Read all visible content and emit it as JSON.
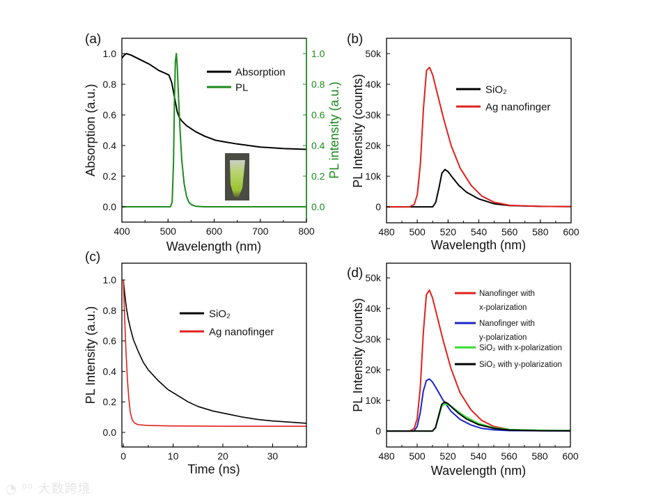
{
  "watermark": "大数跨境",
  "chart_data": [
    {
      "panel": "(a)",
      "type": "line",
      "xlabel": "Wavelength (nm)",
      "ylabel": "Absorption (a.u.)",
      "ylabel_right": "PL intensity (a.u.)",
      "xlim": [
        400,
        800
      ],
      "ylim": [
        -0.1,
        1.1
      ],
      "xticks": [
        "400",
        "500",
        "600",
        "700",
        "800"
      ],
      "yticks": [
        "0.0",
        "0.2",
        "0.4",
        "0.6",
        "0.8",
        "1.0"
      ],
      "yticks_right": [
        "0.0",
        "0.2",
        "0.4",
        "0.6",
        "0.8",
        "1.0"
      ],
      "inset": "vial photo",
      "series": [
        {
          "name": "Absorption",
          "color": "#000000",
          "x": [
            400,
            405,
            410,
            420,
            440,
            460,
            480,
            495,
            502,
            508,
            515,
            520,
            525,
            530,
            540,
            560,
            580,
            598,
            602,
            620,
            650,
            700,
            750,
            800
          ],
          "y": [
            0.97,
            0.99,
            1.0,
            0.99,
            0.96,
            0.93,
            0.89,
            0.87,
            0.86,
            0.81,
            0.7,
            0.62,
            0.58,
            0.56,
            0.53,
            0.49,
            0.46,
            0.44,
            0.435,
            0.425,
            0.41,
            0.39,
            0.38,
            0.375
          ]
        },
        {
          "name": "PL",
          "color": "#1a8a1a",
          "x": [
            400,
            505,
            509,
            512,
            514,
            516,
            518,
            520,
            523,
            526,
            530,
            535,
            540,
            545,
            550,
            560,
            580,
            800
          ],
          "y": [
            0,
            0,
            0.03,
            0.3,
            0.7,
            0.95,
            1.0,
            0.92,
            0.7,
            0.5,
            0.3,
            0.15,
            0.07,
            0.03,
            0.015,
            0.003,
            0,
            0
          ]
        }
      ]
    },
    {
      "panel": "(b)",
      "type": "line",
      "xlabel": "Wavelength (nm)",
      "ylabel": "PL Intensity (counts)",
      "xlim": [
        480,
        600
      ],
      "ylim": [
        -5200,
        55000
      ],
      "xticks": [
        "480",
        "500",
        "520",
        "540",
        "560",
        "580",
        "600"
      ],
      "yticks": [
        "0",
        "10k",
        "20k",
        "30k",
        "40k",
        "50k"
      ],
      "series": [
        {
          "name": "SiO₂",
          "color": "#000000",
          "x": [
            480,
            510,
            512,
            514,
            516,
            518,
            520,
            523,
            527,
            532,
            540,
            550,
            560,
            580,
            600
          ],
          "y": [
            0,
            0,
            1500,
            6000,
            11000,
            12200,
            11500,
            9500,
            7000,
            4800,
            2600,
            1000,
            400,
            150,
            100
          ]
        },
        {
          "name": "Ag nanofinger",
          "color": "#e0201b",
          "x": [
            480,
            495,
            498,
            500,
            502,
            504,
            506,
            508,
            510,
            513,
            517,
            522,
            528,
            535,
            542,
            550,
            560,
            580,
            600
          ],
          "y": [
            0,
            0,
            800,
            4000,
            14000,
            32000,
            44500,
            45500,
            43000,
            37000,
            29000,
            20000,
            12500,
            7000,
            3500,
            1500,
            500,
            150,
            100
          ]
        }
      ]
    },
    {
      "panel": "(c)",
      "type": "line",
      "xlabel": "Time (ns)",
      "ylabel": "PL Intensity (a.u.)",
      "xlim": [
        -0.3,
        36.8
      ],
      "ylim": [
        -0.096,
        1.11
      ],
      "xticks": [
        "0",
        "10",
        "20",
        "30"
      ],
      "yticks": [
        "0.0",
        "0.2",
        "0.4",
        "0.6",
        "0.8",
        "1.0"
      ],
      "series": [
        {
          "name": "SiO₂",
          "color": "#000000",
          "x": [
            0,
            0.3,
            0.6,
            1,
            1.5,
            2,
            3,
            4,
            5,
            7,
            9,
            11,
            13,
            15,
            18,
            21,
            24,
            27,
            30,
            33,
            36.8
          ],
          "y": [
            1.0,
            0.9,
            0.82,
            0.74,
            0.67,
            0.61,
            0.53,
            0.46,
            0.41,
            0.34,
            0.28,
            0.24,
            0.2,
            0.17,
            0.14,
            0.12,
            0.1,
            0.085,
            0.075,
            0.068,
            0.06
          ]
        },
        {
          "name": "Ag nanofinger",
          "color": "#e0201b",
          "x": [
            0,
            0.2,
            0.5,
            0.8,
            1.1,
            1.4,
            1.8,
            2.3,
            3,
            5,
            10,
            20,
            30,
            36.8
          ],
          "y": [
            1.0,
            0.8,
            0.55,
            0.35,
            0.22,
            0.13,
            0.08,
            0.06,
            0.05,
            0.045,
            0.042,
            0.04,
            0.04,
            0.04
          ]
        }
      ]
    },
    {
      "panel": "(d)",
      "type": "line",
      "xlabel": "Wavelength (nm)",
      "ylabel": "PL Intensity (counts)",
      "xlim": [
        480,
        600
      ],
      "ylim": [
        -5200,
        54800
      ],
      "xticks": [
        "480",
        "500",
        "520",
        "540",
        "560",
        "580",
        "600"
      ],
      "yticks": [
        "0",
        "10k",
        "20k",
        "30k",
        "40k",
        "50k"
      ],
      "series": [
        {
          "name": "Nanofinger with",
          "name2": "x-polarization",
          "color": "#e0201b",
          "x": [
            480,
            495,
            498,
            500,
            502,
            504,
            506,
            508,
            510,
            513,
            517,
            522,
            528,
            535,
            542,
            550,
            560,
            580,
            600
          ],
          "y": [
            0,
            0,
            800,
            4000,
            14000,
            32000,
            44500,
            46000,
            43500,
            37500,
            29500,
            20500,
            12500,
            7000,
            3500,
            1500,
            500,
            150,
            100
          ]
        },
        {
          "name": "Nanofinger with",
          "name2": "y-polarization",
          "color": "#1b24c8",
          "x": [
            480,
            498,
            500,
            502,
            504,
            506,
            508,
            510,
            513,
            517,
            522,
            528,
            535,
            542,
            550,
            560,
            600
          ],
          "y": [
            0,
            0,
            1500,
            6000,
            13000,
            16500,
            17000,
            16000,
            13500,
            10000,
            6500,
            3800,
            2000,
            900,
            400,
            150,
            50
          ]
        },
        {
          "name": "SiO₂ with x-polarization",
          "color": "#33dd33",
          "x": [
            480,
            510,
            512,
            514,
            516,
            518,
            520,
            523,
            527,
            532,
            540,
            550,
            560,
            580,
            600
          ],
          "y": [
            0,
            0,
            1000,
            4500,
            8000,
            8800,
            8600,
            7800,
            6300,
            4600,
            2500,
            1100,
            500,
            250,
            200
          ]
        },
        {
          "name": "SiO₂ with y-polarization",
          "color": "#000000",
          "x": [
            480,
            510,
            512,
            514,
            516,
            518,
            520,
            523,
            527,
            532,
            540,
            550,
            560,
            580,
            600
          ],
          "y": [
            0,
            0,
            1200,
            5000,
            8700,
            9500,
            9000,
            7600,
            5800,
            4000,
            2100,
            900,
            350,
            120,
            80
          ]
        }
      ]
    }
  ]
}
